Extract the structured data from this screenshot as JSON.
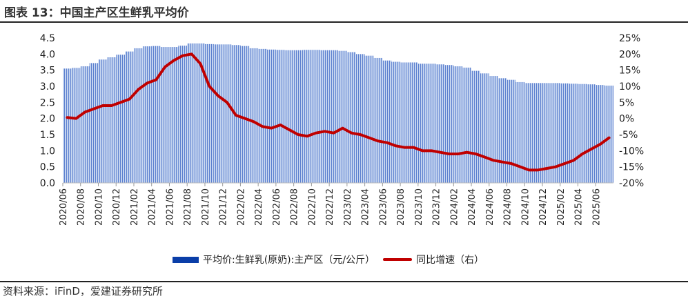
{
  "title": "图表 13：中国主产区生鲜乳平均价",
  "source": "资料来源：iFinD，爱建证券研究所",
  "chart_data": {
    "type": "bar+line",
    "x": [
      "2020/06",
      "2020/07",
      "2020/08",
      "2020/09",
      "2020/10",
      "2020/11",
      "2020/12",
      "2021/01",
      "2021/02",
      "2021/03",
      "2021/04",
      "2021/05",
      "2021/06",
      "2021/07",
      "2021/08",
      "2021/09",
      "2021/10",
      "2021/11",
      "2021/12",
      "2022/01",
      "2022/02",
      "2022/03",
      "2022/04",
      "2022/05",
      "2022/06",
      "2022/07",
      "2022/08",
      "2022/09",
      "2022/10",
      "2022/11",
      "2022/12",
      "2023/01",
      "2023/02",
      "2023/03",
      "2023/04",
      "2023/05",
      "2023/06",
      "2023/07",
      "2023/08",
      "2023/09",
      "2023/10",
      "2023/11",
      "2023/12",
      "2024/01",
      "2024/02",
      "2024/03",
      "2024/04",
      "2024/05",
      "2024/06",
      "2024/07",
      "2024/08",
      "2024/09",
      "2024/10",
      "2024/11",
      "2024/12",
      "2025/01",
      "2025/02",
      "2025/03",
      "2025/04",
      "2025/05",
      "2025/06",
      "2025/07"
    ],
    "tick_labels": [
      "2020/06",
      "2020/08",
      "2020/10",
      "2020/12",
      "2021/02",
      "2021/04",
      "2021/06",
      "2021/08",
      "2021/10",
      "2021/12",
      "2022/02",
      "2022/04",
      "2022/06",
      "2022/08",
      "2022/10",
      "2022/12",
      "2023/02",
      "2023/04",
      "2023/06",
      "2023/08",
      "2023/10",
      "2023/12",
      "2024/02",
      "2024/04",
      "2024/06",
      "2024/08",
      "2024/10",
      "2024/12",
      "2025/02",
      "2025/04",
      "2025/06"
    ],
    "series": [
      {
        "name": "平均价:生鲜乳(原奶):主产区（元/公斤）",
        "type": "bar",
        "axis": "left",
        "color": "#0a3ea8",
        "values": [
          3.55,
          3.57,
          3.62,
          3.72,
          3.83,
          3.9,
          3.98,
          4.08,
          4.18,
          4.24,
          4.25,
          4.22,
          4.22,
          4.26,
          4.33,
          4.33,
          4.31,
          4.3,
          4.3,
          4.28,
          4.25,
          4.18,
          4.16,
          4.14,
          4.13,
          4.12,
          4.12,
          4.13,
          4.13,
          4.12,
          4.12,
          4.1,
          4.06,
          4.0,
          3.95,
          3.88,
          3.8,
          3.76,
          3.74,
          3.74,
          3.7,
          3.7,
          3.68,
          3.66,
          3.62,
          3.58,
          3.48,
          3.4,
          3.32,
          3.25,
          3.2,
          3.13,
          3.1,
          3.1,
          3.1,
          3.1,
          3.09,
          3.08,
          3.07,
          3.06,
          3.04,
          3.02
        ]
      },
      {
        "name": "同比增速（右）",
        "type": "line",
        "axis": "right",
        "color": "#c00000",
        "values": [
          0.3,
          0,
          2,
          3,
          4,
          4,
          5,
          6,
          9,
          11,
          12,
          16,
          18,
          19.5,
          20,
          17,
          10,
          7,
          5,
          1,
          0,
          -1,
          -2.5,
          -3,
          -2,
          -3.5,
          -5,
          -5.5,
          -4.5,
          -4,
          -4.5,
          -3,
          -4.5,
          -5,
          -6,
          -7,
          -7.5,
          -8.5,
          -9,
          -9,
          -10,
          -10,
          -10.5,
          -11,
          -11,
          -10.5,
          -11,
          -12,
          -13,
          -13.5,
          -14,
          -15,
          -16,
          -16,
          -15.5,
          -15,
          -14,
          -13,
          -11,
          -9.5,
          -8,
          -6
        ]
      }
    ],
    "left_axis": {
      "ylim": [
        0,
        4.5
      ],
      "ticks": [
        "0.0",
        "0.5",
        "1.0",
        "1.5",
        "2.0",
        "2.5",
        "3.0",
        "3.5",
        "4.0",
        "4.5"
      ]
    },
    "right_axis": {
      "ylim": [
        -20,
        25
      ],
      "ticks": [
        "-20%",
        "-15%",
        "-10%",
        "-5%",
        "0%",
        "5%",
        "10%",
        "15%",
        "20%",
        "25%"
      ]
    },
    "grid": false,
    "legend_position": "bottom"
  }
}
